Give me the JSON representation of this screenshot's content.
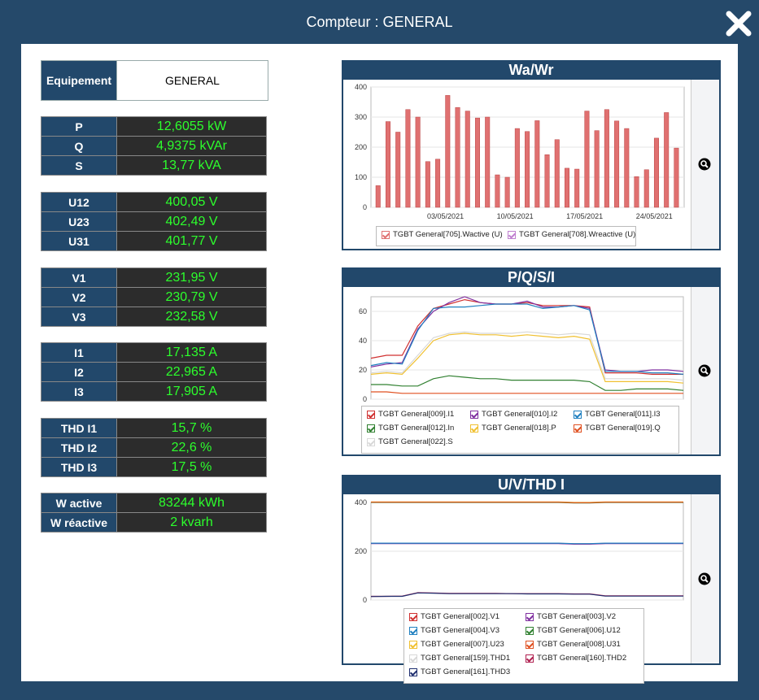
{
  "window": {
    "title": "Compteur : GENERAL"
  },
  "equipement": {
    "label": "Equipement",
    "value": "GENERAL"
  },
  "groups": [
    [
      {
        "label": "P",
        "value": "12,6055 kW"
      },
      {
        "label": "Q",
        "value": "4,9375 kVAr"
      },
      {
        "label": "S",
        "value": "13,77 kVA"
      }
    ],
    [
      {
        "label": "U12",
        "value": "400,05 V"
      },
      {
        "label": "U23",
        "value": "402,49 V"
      },
      {
        "label": "U31",
        "value": "401,77 V"
      }
    ],
    [
      {
        "label": "V1",
        "value": "231,95 V"
      },
      {
        "label": "V2",
        "value": "230,79 V"
      },
      {
        "label": "V3",
        "value": "232,58 V"
      }
    ],
    [
      {
        "label": "I1",
        "value": "17,135 A"
      },
      {
        "label": "I2",
        "value": "22,965 A"
      },
      {
        "label": "I3",
        "value": "17,905 A"
      }
    ],
    [
      {
        "label": "THD I1",
        "value": "15,7 %"
      },
      {
        "label": "THD I2",
        "value": "22,6 %"
      },
      {
        "label": "THD I3",
        "value": "17,5 %"
      }
    ],
    [
      {
        "label": "W active",
        "value": "83244 kWh"
      },
      {
        "label": "W réactive",
        "value": "2 kvarh"
      }
    ]
  ],
  "colors": {
    "header": "#22486b",
    "value_text": "#2cff2c",
    "value_bg": "#2c2c2c",
    "window_bg": "#25496a"
  },
  "icons": {
    "close": "close-icon",
    "zoom": "zoom-icon"
  },
  "chart_data": [
    {
      "type": "bar",
      "title": "Wa/Wr",
      "x_ticks": [
        "03/05/2021",
        "10/05/2021",
        "17/05/2021",
        "24/05/2021"
      ],
      "ylim": [
        0,
        400
      ],
      "y_ticks": [
        0,
        100,
        200,
        300,
        400
      ],
      "series": [
        {
          "name": "TGBT General[705].Wactive (U)",
          "color": "#e07070",
          "values": [
            72,
            285,
            250,
            325,
            300,
            152,
            160,
            372,
            332,
            320,
            297,
            300,
            108,
            100,
            262,
            252,
            288,
            175,
            225,
            130,
            127,
            320,
            255,
            325,
            287,
            262,
            102,
            125,
            230,
            315,
            197
          ]
        },
        {
          "name": "TGBT General[708].Wreactive (U)",
          "color": "#c080d0",
          "values": []
        }
      ]
    },
    {
      "type": "line",
      "title": "P/Q/S/I",
      "ylim": [
        0,
        70
      ],
      "y_ticks": [
        0,
        20,
        40,
        60
      ],
      "series": [
        {
          "name": "TGBT General[009].I1",
          "color": "#d03030",
          "values": [
            28,
            30,
            30,
            50,
            62,
            65,
            68,
            66,
            65,
            65,
            66,
            64,
            64,
            64,
            63,
            18,
            18,
            18,
            17,
            17,
            17
          ]
        },
        {
          "name": "TGBT General[010].I2",
          "color": "#8030a0",
          "values": [
            22,
            24,
            25,
            48,
            60,
            66,
            70,
            66,
            65,
            65,
            67,
            63,
            63,
            64,
            62,
            20,
            19,
            19,
            20,
            20,
            19
          ]
        },
        {
          "name": "TGBT General[011].I3",
          "color": "#2080c0",
          "values": [
            23,
            25,
            24,
            47,
            62,
            63,
            63,
            64,
            65,
            65,
            65,
            62,
            63,
            64,
            61,
            19,
            19,
            19,
            18,
            18,
            17
          ]
        },
        {
          "name": "TGBT General[012].In",
          "color": "#308030",
          "values": [
            10,
            10,
            9,
            9,
            14,
            16,
            15,
            14,
            14,
            13,
            13,
            13,
            13,
            13,
            12,
            6,
            6,
            7,
            7,
            7,
            6
          ]
        },
        {
          "name": "TGBT General[018].P",
          "color": "#f0c030",
          "values": [
            17,
            18,
            17,
            28,
            40,
            44,
            45,
            44,
            44,
            43,
            44,
            43,
            42,
            43,
            41,
            12,
            12,
            12,
            12,
            12,
            11
          ]
        },
        {
          "name": "TGBT General[019].Q",
          "color": "#e05020",
          "values": [
            5,
            5,
            4,
            4,
            4,
            4,
            4,
            4,
            4,
            4,
            4,
            4,
            4,
            4,
            4,
            4,
            4,
            4,
            4,
            4,
            4
          ]
        },
        {
          "name": "TGBT General[022].S",
          "color": "#d8d8d8",
          "values": [
            18,
            19,
            18,
            30,
            42,
            45,
            46,
            45,
            45,
            45,
            46,
            45,
            44,
            45,
            44,
            14,
            14,
            14,
            14,
            14,
            13
          ]
        }
      ]
    },
    {
      "type": "line",
      "title": "U/V/THD I",
      "ylim": [
        0,
        400
      ],
      "y_ticks": [
        0,
        200,
        400
      ],
      "series": [
        {
          "name": "TGBT General[002].V1",
          "color": "#d03030",
          "values": [
            232,
            232,
            232,
            232,
            232,
            232,
            232,
            232,
            232,
            232,
            232,
            232,
            232,
            230,
            230,
            232,
            232,
            232,
            232,
            232,
            232
          ]
        },
        {
          "name": "TGBT General[003].V2",
          "color": "#8030a0",
          "values": [
            231,
            231,
            231,
            231,
            231,
            231,
            231,
            231,
            231,
            231,
            231,
            231,
            231,
            229,
            229,
            231,
            231,
            231,
            231,
            231,
            231
          ]
        },
        {
          "name": "TGBT General[004].V3",
          "color": "#2080c0",
          "values": [
            233,
            233,
            233,
            233,
            233,
            233,
            233,
            233,
            233,
            233,
            233,
            233,
            233,
            231,
            231,
            233,
            233,
            233,
            233,
            233,
            233
          ]
        },
        {
          "name": "TGBT General[006].U12",
          "color": "#308030",
          "values": [
            400,
            400,
            400,
            400,
            400,
            400,
            400,
            400,
            400,
            400,
            400,
            400,
            400,
            398,
            398,
            400,
            400,
            400,
            400,
            400,
            400
          ]
        },
        {
          "name": "TGBT General[007].U23",
          "color": "#f0c030",
          "values": [
            402,
            402,
            402,
            402,
            402,
            402,
            402,
            402,
            402,
            402,
            402,
            402,
            402,
            400,
            400,
            402,
            402,
            402,
            402,
            402,
            402
          ]
        },
        {
          "name": "TGBT General[008].U31",
          "color": "#e05020",
          "values": [
            401,
            401,
            401,
            401,
            401,
            401,
            401,
            401,
            401,
            401,
            401,
            401,
            401,
            399,
            399,
            401,
            401,
            401,
            401,
            401,
            401
          ]
        },
        {
          "name": "TGBT General[159].THD1",
          "color": "#d8d8d8",
          "values": [
            16,
            16,
            16,
            30,
            28,
            26,
            26,
            26,
            26,
            26,
            25,
            25,
            25,
            24,
            24,
            16,
            16,
            16,
            16,
            16,
            16
          ]
        },
        {
          "name": "TGBT General[160].THD2",
          "color": "#b02050",
          "values": [
            15,
            15,
            16,
            30,
            29,
            27,
            27,
            27,
            27,
            26,
            26,
            26,
            26,
            25,
            25,
            17,
            17,
            17,
            17,
            17,
            17
          ]
        },
        {
          "name": "TGBT General[161].THD3",
          "color": "#203070",
          "values": [
            14,
            15,
            15,
            29,
            28,
            26,
            26,
            26,
            26,
            26,
            25,
            25,
            25,
            24,
            24,
            16,
            16,
            16,
            16,
            16,
            16
          ]
        }
      ]
    }
  ]
}
